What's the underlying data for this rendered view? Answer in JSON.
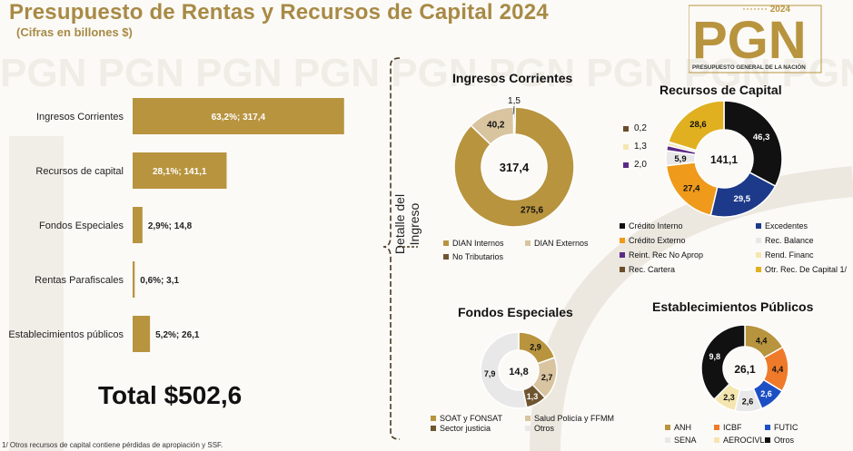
{
  "header": {
    "title": "Presupuesto de Rentas y Recursos de Capital 2024",
    "subtitle": "(Cifras en billones $)"
  },
  "logo": {
    "year": "2024",
    "name": "PGN",
    "caption": "PRESUPUESTO GENERAL DE LA NACIÓN"
  },
  "total_label": "Total $502,6",
  "detail_label": "Detalle del Ingreso",
  "footnote": "1/ Otros recursos de capital contiene pérdidas de apropiación y SSF.",
  "colors": {
    "gold": "#b8943f",
    "tan": "#d9c4a0",
    "brown": "#6f5530",
    "black": "#111111",
    "navy": "#1d3a8a",
    "orange": "#ef9a1a",
    "light_gray": "#e8e8e8",
    "purple": "#5b2a86",
    "cream": "#f5e6b0",
    "dark_brown": "#6a4e2a",
    "yellow": "#e0b020"
  },
  "chart_data": [
    {
      "type": "bar",
      "orientation": "horizontal",
      "categories": [
        "Ingresos Corrientes",
        "Recursos de capital",
        "Fondos Especiales",
        "Rentas Parafiscales",
        "Establecimientos públicos"
      ],
      "values": [
        317.4,
        141.1,
        14.8,
        3.1,
        26.1
      ],
      "labels": [
        "63,2%; 317,4",
        "28,1%; 141,1",
        "2,9%; 14,8",
        "0,6%; 3,1",
        "5,2%; 26,1"
      ],
      "color": "#b8943f",
      "xlim": [
        0,
        330
      ]
    },
    {
      "type": "pie",
      "donut": true,
      "title": "Ingresos Corrientes",
      "center_label": "317,4",
      "slices": [
        {
          "name": "DIAN Internos",
          "value": 275.6,
          "label": "275,6",
          "color": "#b8943f"
        },
        {
          "name": "DIAN Externos",
          "value": 40.2,
          "label": "40,2",
          "color": "#d9c4a0"
        },
        {
          "name": "No Tributarios",
          "value": 1.5,
          "label": "1,5",
          "color": "#6f5530"
        }
      ]
    },
    {
      "type": "pie",
      "donut": true,
      "title": "Recursos de Capital",
      "center_label": "141,1",
      "slices": [
        {
          "name": "Crédito Interno",
          "value": 46.3,
          "label": "46,3",
          "color": "#111111"
        },
        {
          "name": "Excedentes",
          "value": 29.5,
          "label": "29,5",
          "color": "#1d3a8a"
        },
        {
          "name": "Crédito Externo",
          "value": 27.4,
          "label": "27,4",
          "color": "#ef9a1a"
        },
        {
          "name": "Rec. Balance",
          "value": 5.9,
          "label": "5,9",
          "color": "#e8e8e8"
        },
        {
          "name": "Reint. Rec No Aprop",
          "value": 2.0,
          "label": "2,0",
          "color": "#5b2a86"
        },
        {
          "name": "Rend. Financ",
          "value": 1.3,
          "label": "1,3",
          "color": "#f5e6b0"
        },
        {
          "name": "Rec. Cartera",
          "value": 0.2,
          "label": "0,2",
          "color": "#6a4e2a"
        },
        {
          "name": "Otr. Rec. De Capital 1/",
          "value": 28.6,
          "label": "28,6",
          "color": "#e0b020"
        }
      ]
    },
    {
      "type": "pie",
      "donut": true,
      "title": "Fondos Especiales",
      "center_label": "14,8",
      "slices": [
        {
          "name": "SOAT y FONSAT",
          "value": 2.9,
          "label": "2,9",
          "color": "#b8943f"
        },
        {
          "name": "Salud Policía y FFMM",
          "value": 2.7,
          "label": "2,7",
          "color": "#d9c4a0"
        },
        {
          "name": "Sector justicia",
          "value": 1.3,
          "label": "1,3",
          "color": "#6f5530"
        },
        {
          "name": "Otros",
          "value": 7.9,
          "label": "7,9",
          "color": "#e8e8e8"
        }
      ]
    },
    {
      "type": "pie",
      "donut": true,
      "title": "Establecimientos Públicos",
      "center_label": "26,1",
      "slices": [
        {
          "name": "ANH",
          "value": 4.4,
          "label": "4,4",
          "color": "#b8943f"
        },
        {
          "name": "ICBF",
          "value": 4.4,
          "label": "4,4",
          "color": "#ef7a2a"
        },
        {
          "name": "FUTIC",
          "value": 2.6,
          "label": "2,6",
          "color": "#1d4fc4"
        },
        {
          "name": "SENA",
          "value": 2.6,
          "label": "2,6",
          "color": "#e8e8e8"
        },
        {
          "name": "AEROCIVL",
          "value": 2.3,
          "label": "2,3",
          "color": "#f5e6b0"
        },
        {
          "name": "Otros",
          "value": 9.8,
          "label": "9,8",
          "color": "#111111"
        }
      ]
    }
  ]
}
